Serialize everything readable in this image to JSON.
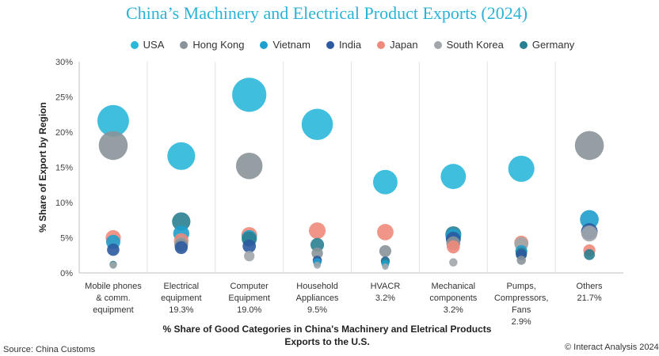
{
  "chart_data": {
    "type": "scatter",
    "title": "China’s Machinery and Electrical Product Exports (2024)",
    "ylabel": "% Share of Export by Region",
    "xlabel": "% Share of Good Categories in China's Machinery and Eletrical Products Exports to the U.S.",
    "ylim": [
      0,
      30
    ],
    "yticks": [
      "0%",
      "5%",
      "10%",
      "15%",
      "20%",
      "25%",
      "30%"
    ],
    "categories": [
      {
        "name": "Mobile phones & comm. equipment",
        "share": ""
      },
      {
        "name": "Electrical equipment",
        "share": "19.3%"
      },
      {
        "name": "Computer Equipment",
        "share": "19.0%"
      },
      {
        "name": "Household Appliances",
        "share": "9.5%"
      },
      {
        "name": "HVACR",
        "share": "3.2%"
      },
      {
        "name": "Mechanical components",
        "share": "3.2%"
      },
      {
        "name": "Pumps, Compressors, Fans",
        "share": "2.9%"
      },
      {
        "name": "Others",
        "share": "21.7%"
      }
    ],
    "category_lines": [
      [
        "Mobile phones",
        "& comm.",
        "equipment"
      ],
      [
        "Electrical",
        "equipment",
        "19.3%"
      ],
      [
        "Computer",
        "Equipment",
        "19.0%"
      ],
      [
        "Household",
        "Appliances",
        "9.5%"
      ],
      [
        "HVACR",
        "3.2%"
      ],
      [
        "Mechanical",
        "components",
        "3.2%"
      ],
      [
        "Pumps,",
        "Compressors,",
        "Fans",
        "2.9%"
      ],
      [
        "Others",
        "21.7%"
      ]
    ],
    "series": [
      {
        "name": "USA",
        "color": "#2ab8d9",
        "values": [
          21.6,
          16.6,
          25.3,
          21.1,
          12.9,
          13.7,
          14.8,
          null
        ]
      },
      {
        "name": "Hong Kong",
        "color": "#8a9399",
        "values": [
          18.1,
          4.0,
          15.2,
          2.8,
          3.1,
          4.2,
          1.8,
          18.1
        ]
      },
      {
        "name": "Vietnam",
        "color": "#1f9fcc",
        "values": [
          4.4,
          5.6,
          5.0,
          1.5,
          1.3,
          5.2,
          3.1,
          7.6
        ]
      },
      {
        "name": "India",
        "color": "#2c5aa0",
        "values": [
          3.3,
          3.6,
          3.8,
          1.8,
          1.7,
          4.8,
          2.6,
          5.9
        ]
      },
      {
        "name": "Japan",
        "color": "#ee8a7a",
        "values": [
          5.0,
          4.6,
          5.4,
          6.0,
          5.8,
          3.7,
          4.3,
          3.2
        ]
      },
      {
        "name": "South Korea",
        "color": "#a0a6aa",
        "values": [
          1.1,
          4.1,
          2.4,
          1.1,
          0.9,
          1.5,
          4.1,
          5.6
        ]
      },
      {
        "name": "Germany",
        "color": "#2a7f91",
        "values": [
          1.2,
          7.3,
          4.8,
          4.0,
          1.6,
          5.5,
          2.8,
          2.6
        ]
      }
    ],
    "legend_position": "top",
    "grid": false
  },
  "footer": {
    "source": "Source: China Customs",
    "copyright": "© Interact Analysis 2024"
  }
}
